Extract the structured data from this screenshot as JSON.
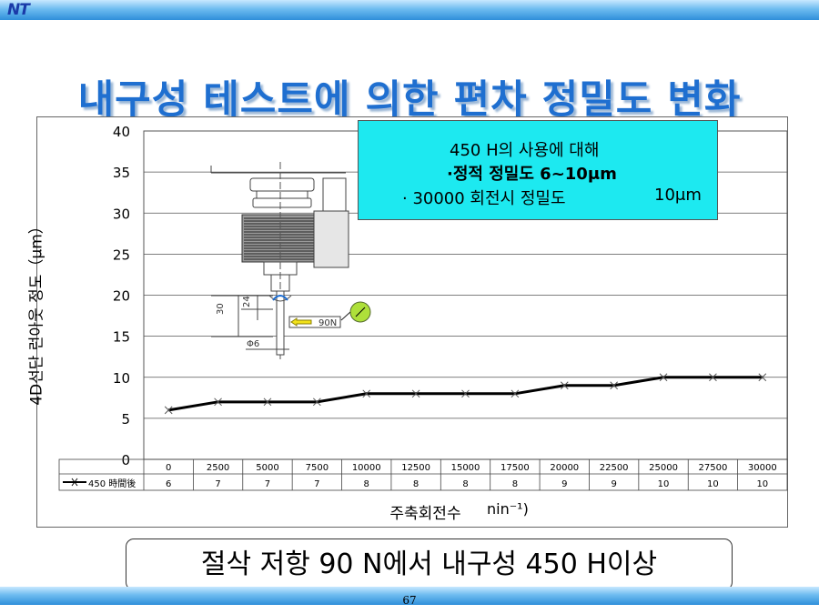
{
  "header": {
    "logo_text": "NT"
  },
  "title": "내구성 테스트에 의한 편차 정밀도 변화",
  "note": {
    "line1": "450 H의 사용에 대해",
    "line2": "·정적 정밀도   6~10μm",
    "line3": "· 30000 회전시 정밀도",
    "line3_value": "10μm"
  },
  "diagram": {
    "dim_30": "30",
    "dim_24": "24",
    "force": "90N",
    "dia": "Φ6"
  },
  "x_axis_label": "주축회전수",
  "x_axis_unit": "nin⁻¹)",
  "footer_caption": "절삭 저항 90 N에서 내구성 450 H이상",
  "page_number": "67",
  "chart_data": {
    "type": "line",
    "ylabel": "4D선단 런아웃 정도（μm）",
    "ylim": [
      0,
      40
    ],
    "yticks": [
      0,
      5,
      10,
      15,
      20,
      25,
      30,
      35,
      40
    ],
    "x": [
      0,
      2500,
      5000,
      7500,
      10000,
      12500,
      15000,
      17500,
      20000,
      22500,
      25000,
      27500,
      30000
    ],
    "x_tick_labels": [
      "0",
      "2500",
      "5000",
      "7500",
      "10000",
      "12500",
      "15000",
      "17500",
      "20000",
      "22500",
      "25000",
      "27500",
      "30000"
    ],
    "series": [
      {
        "name": "450 時間後",
        "values": [
          6,
          7,
          7,
          7,
          8,
          8,
          8,
          8,
          9,
          9,
          10,
          10,
          10
        ],
        "color": "#000000",
        "marker": "x"
      }
    ],
    "grid": true,
    "legend": "data-table-left"
  }
}
